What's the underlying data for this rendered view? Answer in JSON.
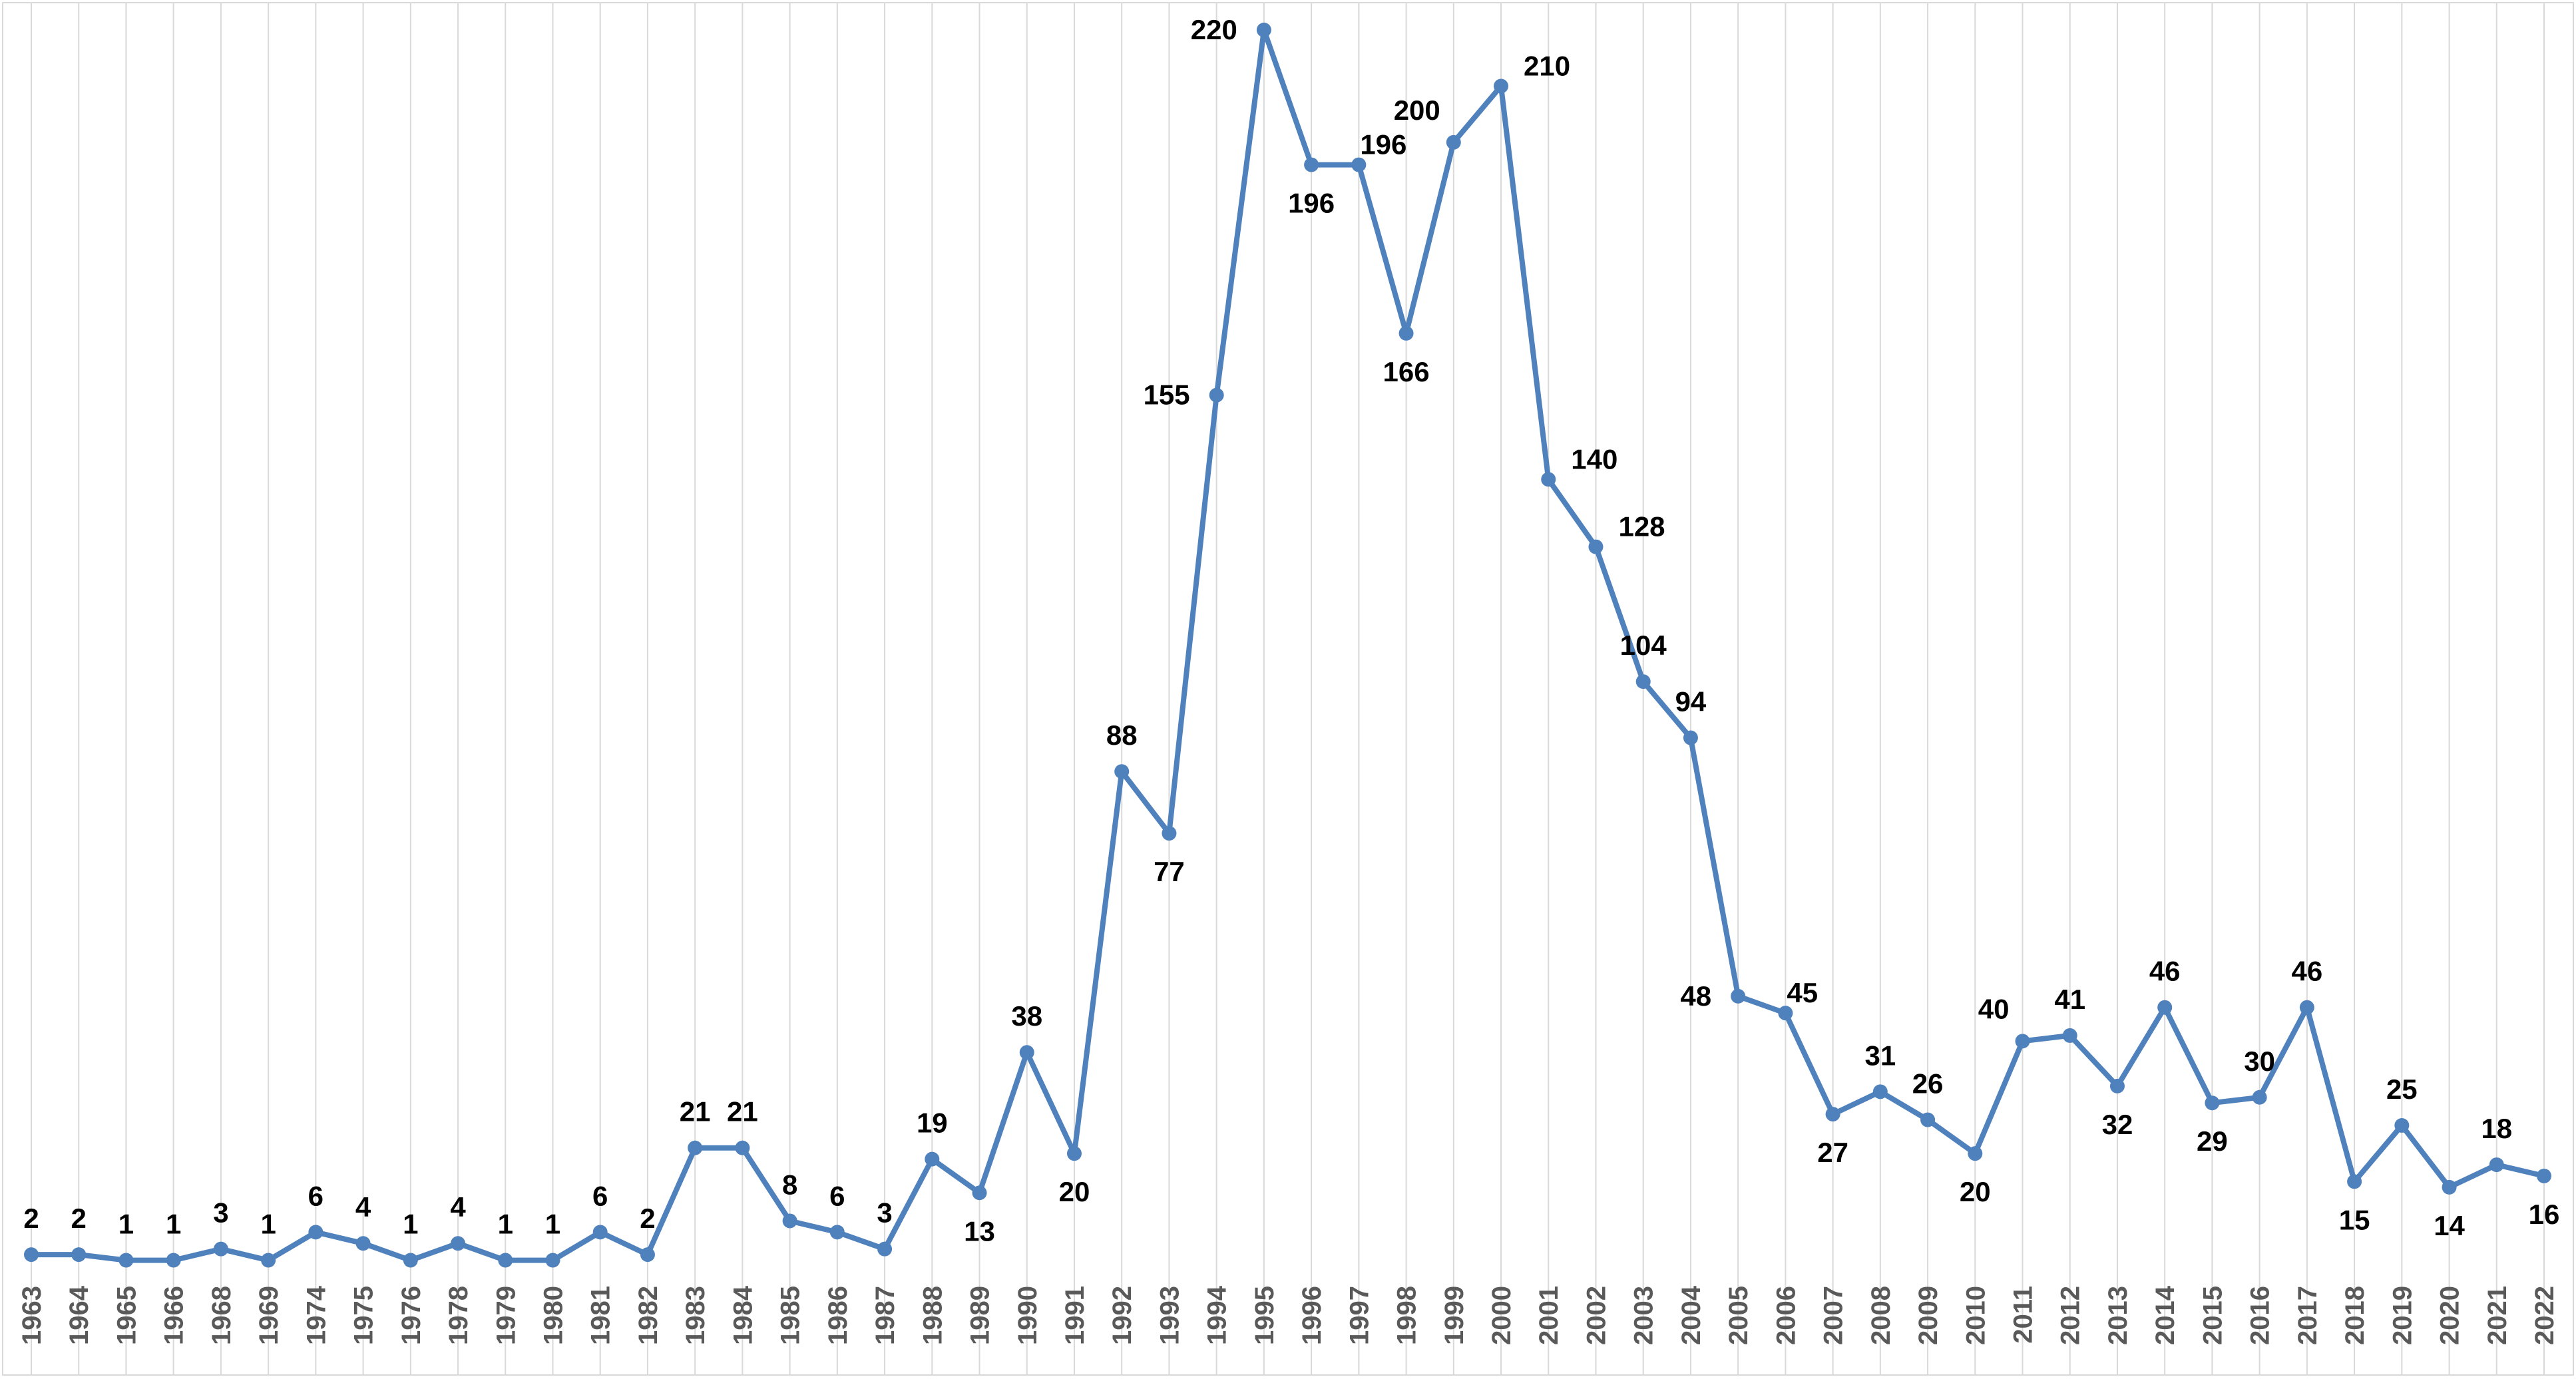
{
  "chart_data": {
    "type": "line",
    "title": "",
    "xlabel": "",
    "ylabel": "",
    "ylim": [
      0,
      220
    ],
    "grid": "vertical",
    "legend": "none",
    "data_labels": true,
    "categories": [
      "1963",
      "1964",
      "1965",
      "1966",
      "1968",
      "1969",
      "1974",
      "1975",
      "1976",
      "1978",
      "1979",
      "1980",
      "1981",
      "1982",
      "1983",
      "1984",
      "1985",
      "1986",
      "1987",
      "1988",
      "1989",
      "1990",
      "1991",
      "1992",
      "1993",
      "1994",
      "1995",
      "1996",
      "1997",
      "1998",
      "1999",
      "2000",
      "2001",
      "2002",
      "2003",
      "2004",
      "2005",
      "2006",
      "2007",
      "2008",
      "2009",
      "2010",
      "2011",
      "2012",
      "2013",
      "2014",
      "2015",
      "2016",
      "2017",
      "2018",
      "2019",
      "2020",
      "2021",
      "2022"
    ],
    "series": [
      {
        "color": "#4f81bd",
        "values": [
          2,
          2,
          1,
          1,
          3,
          1,
          6,
          4,
          1,
          4,
          1,
          1,
          6,
          2,
          21,
          21,
          8,
          6,
          3,
          19,
          13,
          38,
          20,
          88,
          77,
          155,
          220,
          196,
          196,
          166,
          200,
          210,
          140,
          128,
          104,
          94,
          48,
          45,
          27,
          31,
          26,
          20,
          40,
          41,
          32,
          46,
          29,
          30,
          46,
          15,
          25,
          14,
          18,
          16
        ]
      }
    ]
  }
}
